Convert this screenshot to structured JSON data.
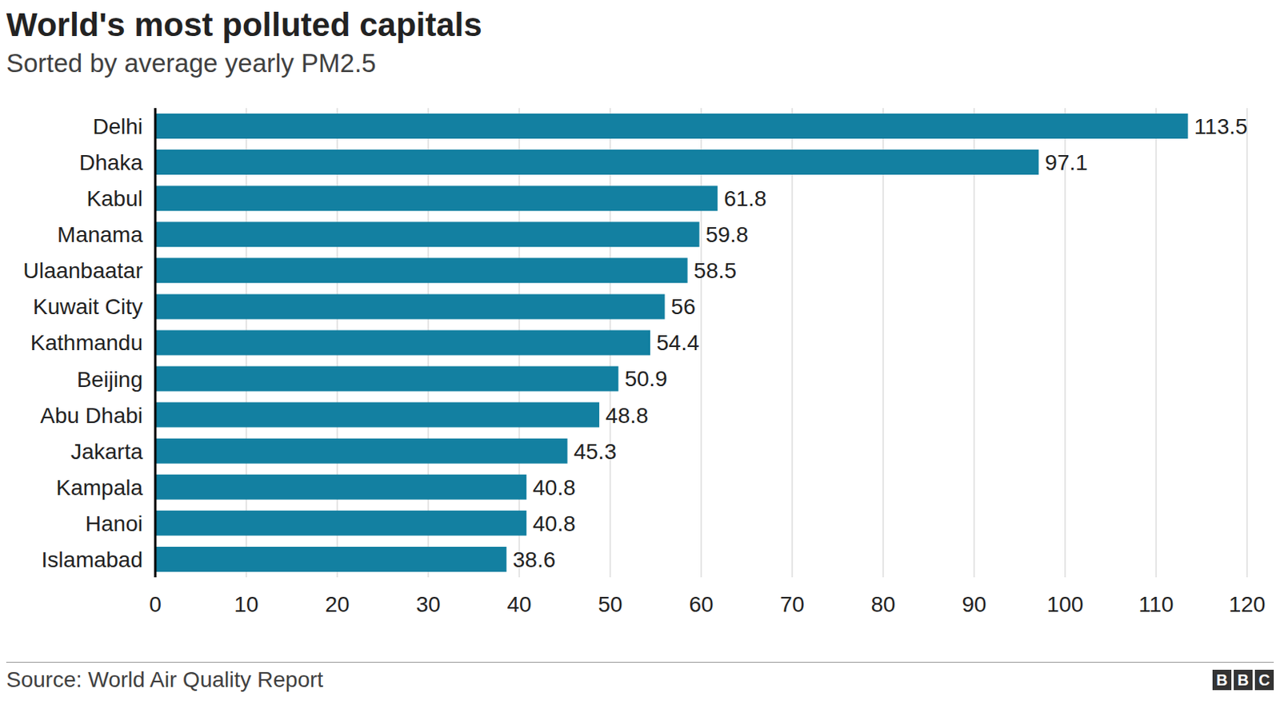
{
  "chart_data": {
    "type": "bar",
    "title": "World's most polluted capitals",
    "subtitle": "Sorted by average yearly PM2.5",
    "source": "Source: World Air Quality Report",
    "logo": "BBC",
    "categories": [
      "Delhi",
      "Dhaka",
      "Kabul",
      "Manama",
      "Ulaanbaatar",
      "Kuwait City",
      "Kathmandu",
      "Beijing",
      "Abu Dhabi",
      "Jakarta",
      "Kampala",
      "Hanoi",
      "Islamabad"
    ],
    "values": [
      113.5,
      97.1,
      61.8,
      59.8,
      58.5,
      56,
      54.4,
      50.9,
      48.8,
      45.3,
      40.8,
      40.8,
      38.6
    ],
    "color": "#1380a1",
    "orientation": "horizontal",
    "xlim": [
      0,
      120
    ],
    "xticks": [
      0,
      10,
      20,
      30,
      40,
      50,
      60,
      70,
      80,
      90,
      100,
      110,
      120
    ],
    "grid": true,
    "data_labels": true
  }
}
